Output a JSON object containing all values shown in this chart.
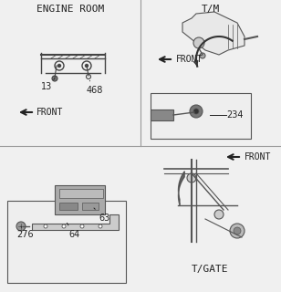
{
  "bg_color": "#f0f0f0",
  "line_color": "#555555",
  "text_color": "#222222",
  "title_top_left": "ENGINE ROOM",
  "title_top_right": "T/M",
  "title_bottom_left": "",
  "title_bottom_right": "T/GATE",
  "label_13": "13",
  "label_468": "468",
  "label_234": "234",
  "label_276": "276",
  "label_64": "64",
  "label_63": "63",
  "front_arrow_color": "#222222",
  "divider_color": "#999999",
  "font_size_title": 8,
  "font_size_label": 7,
  "font_size_front": 7
}
